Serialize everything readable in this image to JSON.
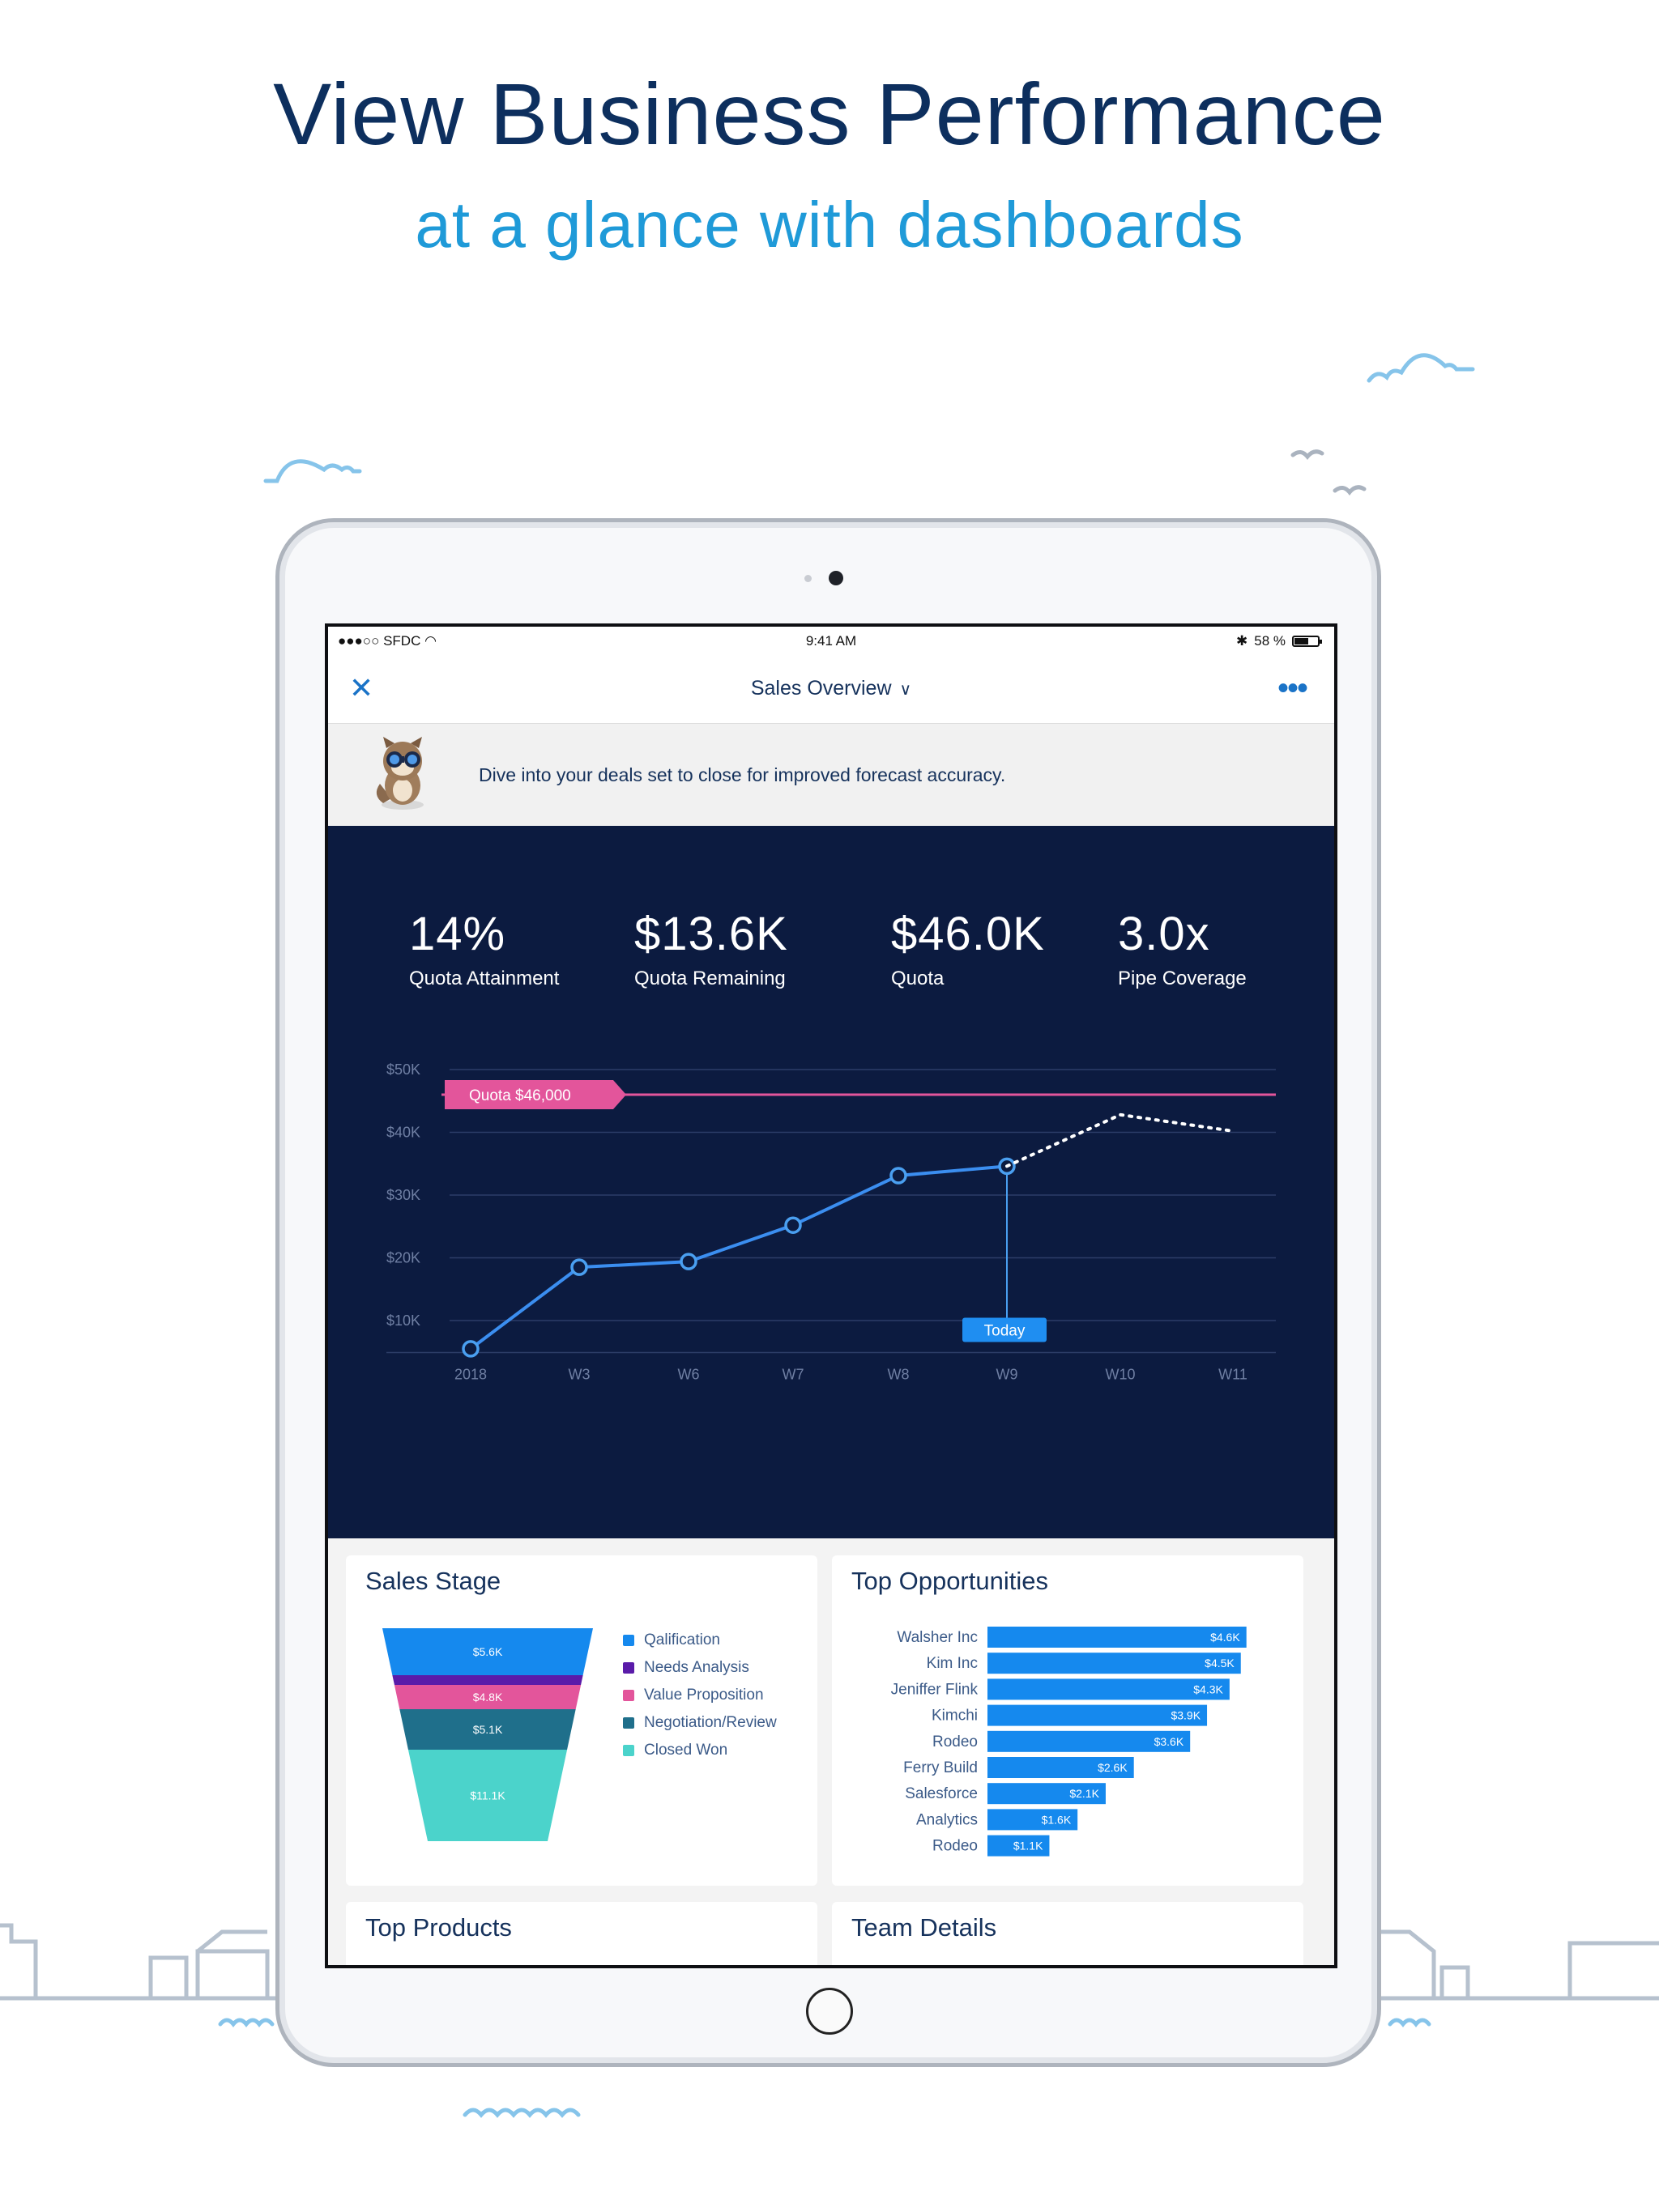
{
  "headline": {
    "title": "View Business Performance",
    "subtitle": "at a glance with dashboards"
  },
  "status_bar": {
    "carrier": "●●●○○ SFDC",
    "time": "9:41 AM",
    "battery": "58 %"
  },
  "nav": {
    "title": "Sales Overview",
    "close_icon": "close-icon",
    "more_icon": "more-icon"
  },
  "banner": {
    "text": "Dive into your deals set to close for improved forecast accuracy."
  },
  "kpis": [
    {
      "value": "14%",
      "label": "Quota Attainment"
    },
    {
      "value": "$13.6K",
      "label": "Quota Remaining"
    },
    {
      "value": "$46.0K",
      "label": "Quota"
    },
    {
      "value": "3.0x",
      "label": "Pipe Coverage"
    }
  ],
  "colors": {
    "dark_panel": "#0c1b40",
    "accent_blue": "#1589ee",
    "quota_pink": "#e3559b",
    "headline_navy": "#0d2f5e",
    "headline_blue": "#1f9ad8"
  },
  "chart_data": [
    {
      "type": "line",
      "x": [
        "2018",
        "W3",
        "W6",
        "W7",
        "W8",
        "W9",
        "W10",
        "W11"
      ],
      "y_ticks": [
        "$50K",
        "$40K",
        "$30K",
        "$20K",
        "$10K"
      ],
      "ylim": [
        0,
        55000
      ],
      "series": [
        {
          "name": "actual",
          "values": [
            5500,
            18500,
            19400,
            25200,
            33100,
            34600,
            null,
            null
          ]
        },
        {
          "name": "forecast",
          "values": [
            null,
            null,
            null,
            null,
            null,
            34600,
            42800,
            40200
          ]
        }
      ],
      "reference_line": {
        "label": "Quota $46,000",
        "value": 46000
      },
      "marker": {
        "label": "Today",
        "x": "W9"
      },
      "grid": true
    },
    {
      "type": "funnel",
      "title": "Sales Stage",
      "categories": [
        "Qalification",
        "Needs Analysis",
        "Value Proposition",
        "Negotiation/Review",
        "Closed Won"
      ],
      "values": [
        5.6,
        0.7,
        4.8,
        5.1,
        11.1
      ],
      "labels": [
        "$5.6K",
        "",
        "$4.8K",
        "$5.1K",
        "$11.1K"
      ],
      "colors": [
        "#1589ee",
        "#5a1ba9",
        "#e3559b",
        "#1f6f8b",
        "#4bd3cb"
      ],
      "legend": "right"
    },
    {
      "type": "bar",
      "orientation": "horizontal",
      "title": "Top Opportunities",
      "categories": [
        "Walsher Inc",
        "Kim Inc",
        "Jeniffer Flink",
        "Kimchi",
        "Rodeo",
        "Ferry Build",
        "Salesforce",
        "Analytics",
        "Rodeo"
      ],
      "values": [
        4.6,
        4.5,
        4.3,
        3.9,
        3.6,
        2.6,
        2.1,
        1.6,
        1.1
      ],
      "labels": [
        "$4.6K",
        "$4.5K",
        "$4.3K",
        "$3.9K",
        "$3.6K",
        "$2.6K",
        "$2.1K",
        "$1.6K",
        "$1.1K"
      ],
      "color": "#1589ee"
    }
  ],
  "cards": {
    "top_products": "Top Products",
    "team_details": "Team Details"
  }
}
